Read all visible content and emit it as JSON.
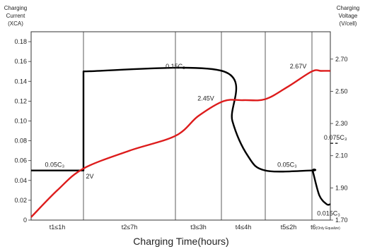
{
  "chart_data": {
    "type": "line",
    "left_axis_title": [
      "Charging",
      "Current",
      "(XCA)"
    ],
    "right_axis_title": [
      "Charging",
      "Voltage",
      "(V/cell)"
    ],
    "xlabel": "Charging Time(hours)",
    "left_ylim": [
      0,
      0.19
    ],
    "right_ylim": [
      1.7,
      2.87
    ],
    "left_ticks": [
      "0",
      "0.02",
      "0.04",
      "0.06",
      "0.08",
      "0.10",
      "0.12",
      "0.14",
      "0.16",
      "0.18"
    ],
    "right_ticks": [
      "1.70",
      "1.90",
      "2.10",
      "2.30",
      "2.50",
      "2.70"
    ],
    "phases": [
      {
        "label": "t1≤1h"
      },
      {
        "label": "t2≤7h"
      },
      {
        "label": "t3≤3h"
      },
      {
        "label": "t4≤4h"
      },
      {
        "label": "t5≤2h"
      },
      {
        "label": "t6",
        "note": "(Only Equalize)"
      }
    ],
    "series": [
      {
        "color": "#000000",
        "axis": "left",
        "points": [
          [
            0,
            0.05
          ],
          [
            1,
            0.05
          ],
          [
            1,
            0.15
          ],
          [
            3.05,
            0.15
          ],
          [
            3.25,
            0.1
          ],
          [
            3.6,
            0.065
          ],
          [
            4,
            0.05
          ],
          [
            5,
            0.05
          ],
          [
            5.05,
            0.049
          ],
          [
            5.4,
            0.025
          ],
          [
            5.8,
            0.016
          ],
          [
            6,
            0.016
          ]
        ]
      },
      {
        "color": "#dd1c1c",
        "axis": "left",
        "points": [
          [
            0,
            0.003
          ],
          [
            0.5,
            0.03
          ],
          [
            1,
            0.052
          ],
          [
            1.5,
            0.07
          ],
          [
            2,
            0.085
          ],
          [
            2.5,
            0.105
          ],
          [
            3.05,
            0.12
          ],
          [
            3.5,
            0.121
          ],
          [
            4,
            0.122
          ],
          [
            4.5,
            0.135
          ],
          [
            5,
            0.15
          ],
          [
            5.5,
            0.1505
          ],
          [
            6,
            0.1505
          ]
        ]
      },
      {
        "color": "#000000",
        "axis": "left",
        "dashed": true,
        "points": [
          [
            6,
            0.0775
          ],
          [
            6.4,
            0.0775
          ]
        ]
      }
    ],
    "annotations": [
      {
        "text": "0.05C₃",
        "x": 0.45,
        "y": 0.05,
        "color": "#222222"
      },
      {
        "text": "0.15C₃",
        "x": 2.0,
        "y": 0.15,
        "color": "#222222"
      },
      {
        "text": "0.05C₃",
        "x": 4.5,
        "y": 0.05,
        "color": "#222222"
      },
      {
        "text": "0.015C₃",
        "x": 5.6,
        "y": 0.016,
        "color": "#222222"
      },
      {
        "text": "0.075C₃",
        "x": 6.2,
        "y": 0.0775,
        "color": "#222222"
      },
      {
        "text": "2V",
        "x": 1.15,
        "y": 0.052,
        "color": "#dd1c1c"
      },
      {
        "text": "2.45V",
        "x": 2.85,
        "y": 0.12,
        "color": "#dd1c1c"
      },
      {
        "text": "2.67V",
        "x": 4.8,
        "y": 0.15,
        "color": "#dd1c1c"
      }
    ]
  }
}
